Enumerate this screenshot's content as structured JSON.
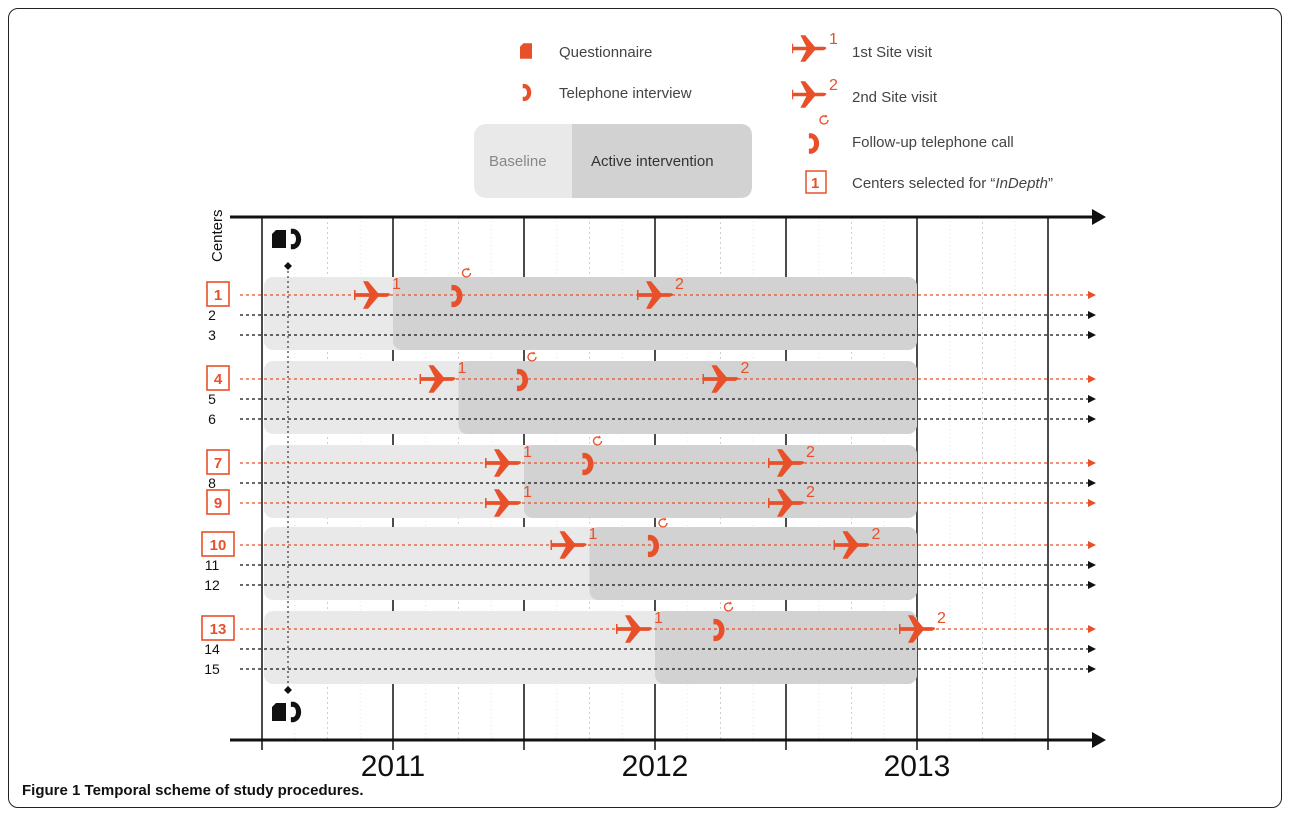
{
  "legend": {
    "questionnaire": "Questionnaire",
    "telephone_interview": "Telephone interview",
    "baseline": "Baseline",
    "active_intervention": "Active intervention",
    "first_site_visit": "1st Site visit",
    "second_site_visit": "2nd Site visit",
    "followup_call": "Follow-up telephone call",
    "centers_selected_prefix": "Centers selected for “",
    "centers_selected_italic": "InDepth",
    "centers_selected_suffix": "”",
    "sample_box_number": "1",
    "visit1_sup": "1",
    "visit2_sup": "2"
  },
  "axis": {
    "y_label": "Centers",
    "years": [
      "2011",
      "2012",
      "2013"
    ]
  },
  "groups": [
    {
      "centers": [
        {
          "label": "1",
          "indepth": true
        },
        {
          "label": "2",
          "indepth": false
        },
        {
          "label": "3",
          "indepth": false
        }
      ],
      "visit1": 0.42,
      "followup": 0.75,
      "visit2": 1.5,
      "intervention_start": 0.5
    },
    {
      "centers": [
        {
          "label": "4",
          "indepth": true
        },
        {
          "label": "5",
          "indepth": false
        },
        {
          "label": "6",
          "indepth": false
        }
      ],
      "visit1": 0.67,
      "followup": 1.0,
      "visit2": 1.75,
      "intervention_start": 0.75
    },
    {
      "centers": [
        {
          "label": "7",
          "indepth": true
        },
        {
          "label": "8",
          "indepth": false
        },
        {
          "label": "9",
          "indepth": true
        }
      ],
      "visit1": 0.92,
      "followup": 1.25,
      "visit2": 2.0,
      "intervention_start": 1.0
    },
    {
      "centers": [
        {
          "label": "10",
          "indepth": true
        },
        {
          "label": "11",
          "indepth": false
        },
        {
          "label": "12",
          "indepth": false
        }
      ],
      "visit1": 1.17,
      "followup": 1.5,
      "visit2": 2.25,
      "intervention_start": 1.25
    },
    {
      "centers": [
        {
          "label": "13",
          "indepth": true
        },
        {
          "label": "14",
          "indepth": false
        },
        {
          "label": "15",
          "indepth": false
        }
      ],
      "visit1": 1.42,
      "followup": 1.75,
      "visit2": 2.5,
      "intervention_start": 1.5
    }
  ],
  "colors": {
    "accent": "#e8502a",
    "baseline_fill": "#e9e9e9",
    "intervention_fill": "#d2d2d2"
  },
  "caption": {
    "label": "Figure 1",
    "text": " Temporal scheme of study procedures."
  }
}
